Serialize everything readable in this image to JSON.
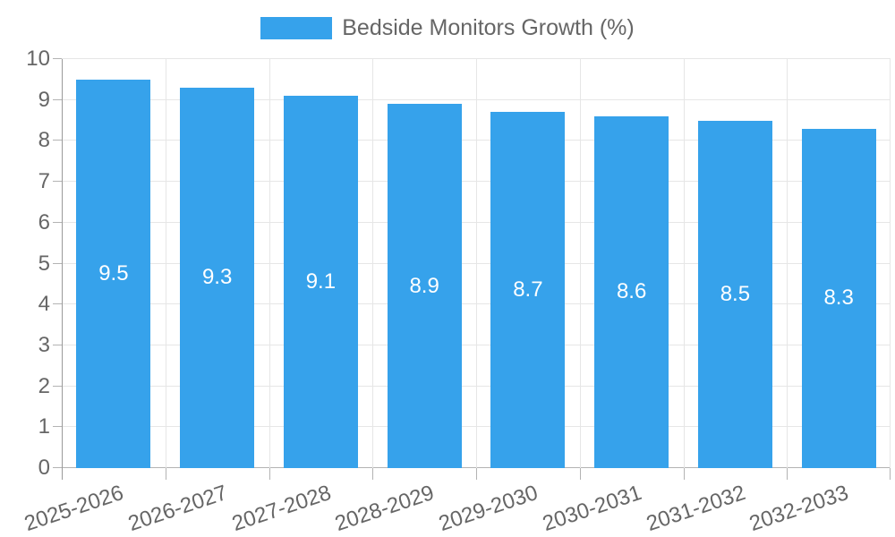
{
  "legend": {
    "label": "Bedside Monitors Growth (%)"
  },
  "chart_data": {
    "type": "bar",
    "title": "",
    "xlabel": "",
    "ylabel": "",
    "categories": [
      "2025-2026",
      "2026-2027",
      "2027-2028",
      "2028-2029",
      "2029-2030",
      "2030-2031",
      "2031-2032",
      "2032-2033"
    ],
    "series": [
      {
        "name": "Bedside Monitors Growth (%)",
        "values": [
          9.5,
          9.3,
          9.1,
          8.9,
          8.7,
          8.6,
          8.5,
          8.3
        ]
      }
    ],
    "value_labels": [
      "9.5",
      "9.3",
      "9.1",
      "8.9",
      "8.7",
      "8.6",
      "8.5",
      "8.3"
    ],
    "ylim": [
      0,
      10
    ],
    "y_ticks": [
      0,
      1,
      2,
      3,
      4,
      5,
      6,
      7,
      8,
      9,
      10
    ],
    "grid": true,
    "legend_position": "top"
  },
  "colors": {
    "bar": "#36A2EB",
    "grid": "#e6e6e6",
    "y_axis_line": "#9a9a9a",
    "x_axis_line": "#b3b3b3",
    "tick_mark": "#b3b3b3",
    "tick_text": "#666666",
    "legend_text": "#666666",
    "bar_value_text": "#ffffff",
    "background": "#ffffff"
  }
}
